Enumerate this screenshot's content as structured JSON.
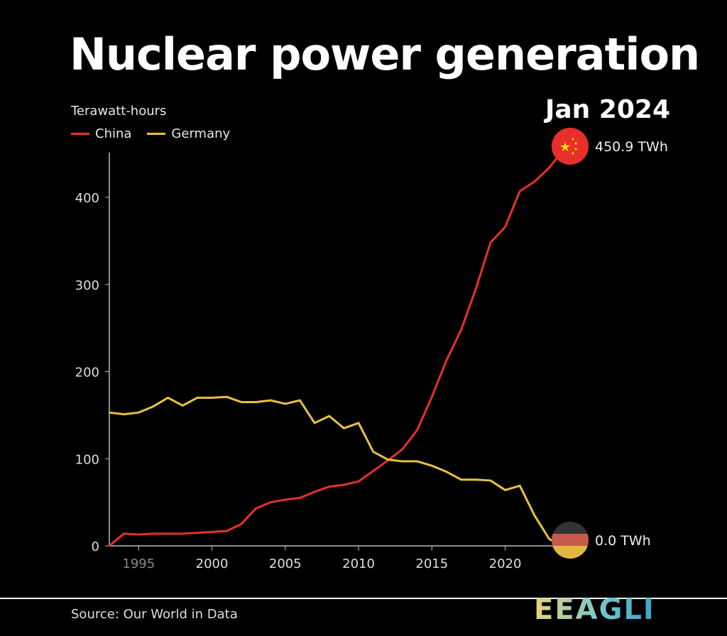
{
  "chart_data": {
    "type": "line",
    "title": "Nuclear power generation",
    "ylabel": "Terawatt-hours",
    "date_label": "Jan 2024",
    "source": "Source: Our World in Data",
    "xlim": [
      1993,
      2024
    ],
    "ylim": [
      0,
      450
    ],
    "x_ticks": [
      "1995",
      "2000",
      "2005",
      "2010",
      "2015",
      "2020"
    ],
    "y_ticks": [
      "0",
      "100",
      "200",
      "300",
      "400"
    ],
    "legend_position": "top-left",
    "grid": false,
    "x": [
      1993,
      1994,
      1995,
      1996,
      1997,
      1998,
      1999,
      2000,
      2001,
      2002,
      2003,
      2004,
      2005,
      2006,
      2007,
      2008,
      2009,
      2010,
      2011,
      2012,
      2013,
      2014,
      2015,
      2016,
      2017,
      2018,
      2019,
      2020,
      2021,
      2022,
      2023,
      2024
    ],
    "series": [
      {
        "name": "China",
        "color": "#e8302a",
        "end_label": "450.9 TWh",
        "flag": "china-flag",
        "values": [
          0,
          14,
          13,
          14,
          14,
          14,
          15,
          16,
          17,
          25,
          43,
          50,
          53,
          55,
          62,
          68,
          70,
          74,
          86,
          98,
          111,
          133,
          171,
          213,
          248,
          295,
          348,
          366,
          407,
          418,
          434,
          450.9
        ]
      },
      {
        "name": "Germany",
        "color": "#e8c040",
        "end_label": "0.0 TWh",
        "flag": "germany-flag",
        "values": [
          153,
          151,
          153,
          160,
          170,
          161,
          170,
          170,
          171,
          165,
          165,
          167,
          163,
          167,
          141,
          149,
          135,
          141,
          108,
          99,
          97,
          97,
          92,
          85,
          76,
          76,
          75,
          64,
          69,
          35,
          8,
          0
        ]
      }
    ]
  },
  "logo": "EEAGLI"
}
